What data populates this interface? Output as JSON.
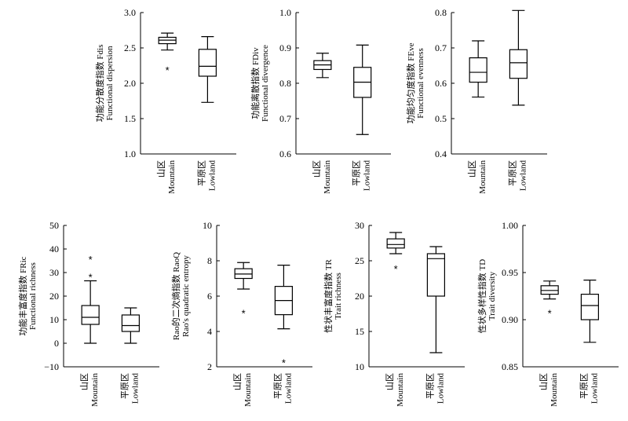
{
  "chart_data": [
    {
      "type": "box",
      "ylabel_cn": "功能分散度指数 Fdis",
      "ylabel_en": "Functional dispersion",
      "ylim": [
        1.0,
        3.0
      ],
      "yticks": [
        "1.0",
        "1.5",
        "2.0",
        "2.5",
        "3.0"
      ],
      "categories": [
        {
          "cn": "山区",
          "en": "Mountain"
        },
        {
          "cn": "平原区",
          "en": "Lowland"
        }
      ],
      "series": [
        {
          "whisker_low": 2.47,
          "q1": 2.56,
          "median": 2.61,
          "q3": 2.65,
          "whisker_high": 2.71,
          "outliers": [
            2.2
          ]
        },
        {
          "whisker_low": 1.73,
          "q1": 2.1,
          "median": 2.24,
          "q3": 2.48,
          "whisker_high": 2.66,
          "outliers": []
        }
      ]
    },
    {
      "type": "box",
      "ylabel_cn": "功能离散指数 FDiv",
      "ylabel_en": "Functional divergence",
      "ylim": [
        0.6,
        1.0
      ],
      "yticks": [
        "0.6",
        "0.7",
        "0.8",
        "0.9",
        "1.0"
      ],
      "categories": [
        {
          "cn": "山区",
          "en": "Mountain"
        },
        {
          "cn": "平原区",
          "en": "Lowland"
        }
      ],
      "series": [
        {
          "whisker_low": 0.816,
          "q1": 0.839,
          "median": 0.852,
          "q3": 0.864,
          "whisker_high": 0.885,
          "outliers": []
        },
        {
          "whisker_low": 0.655,
          "q1": 0.76,
          "median": 0.803,
          "q3": 0.845,
          "whisker_high": 0.908,
          "outliers": []
        }
      ]
    },
    {
      "type": "box",
      "ylabel_cn": "功能均匀度指数 FEve",
      "ylabel_en": "Functional evenness",
      "ylim": [
        0.4,
        0.8
      ],
      "yticks": [
        "0.4",
        "0.5",
        "0.6",
        "0.7",
        "0.8"
      ],
      "categories": [
        {
          "cn": "山区",
          "en": "Mountain"
        },
        {
          "cn": "平原区",
          "en": "Lowland"
        }
      ],
      "series": [
        {
          "whisker_low": 0.561,
          "q1": 0.603,
          "median": 0.631,
          "q3": 0.672,
          "whisker_high": 0.72,
          "outliers": []
        },
        {
          "whisker_low": 0.538,
          "q1": 0.614,
          "median": 0.658,
          "q3": 0.695,
          "whisker_high": 0.806,
          "outliers": []
        }
      ]
    },
    {
      "type": "box",
      "ylabel_cn": "功能丰富度指数 FRic",
      "ylabel_en": "Functional richness",
      "ylim": [
        -10,
        50
      ],
      "yticks": [
        "−10",
        "0",
        "10",
        "20",
        "30",
        "40",
        "50"
      ],
      "categories": [
        {
          "cn": "山区",
          "en": "Mountain"
        },
        {
          "cn": "平原区",
          "en": "Lowland"
        }
      ],
      "series": [
        {
          "whisker_low": 0,
          "q1": 8,
          "median": 11,
          "q3": 16,
          "whisker_high": 26.5,
          "outliers": [
            36,
            28.5
          ]
        },
        {
          "whisker_low": 0,
          "q1": 5,
          "median": 7.5,
          "q3": 12,
          "whisker_high": 15,
          "outliers": []
        }
      ]
    },
    {
      "type": "box",
      "ylabel_cn": "Rao的二次熵指数 RaoQ",
      "ylabel_en": "Rao's quadratic entropy",
      "ylim": [
        2,
        10
      ],
      "yticks": [
        "2",
        "4",
        "6",
        "8",
        "10"
      ],
      "categories": [
        {
          "cn": "山区",
          "en": "Mountain"
        },
        {
          "cn": "平原区",
          "en": "Lowland"
        }
      ],
      "series": [
        {
          "whisker_low": 6.4,
          "q1": 7.0,
          "median": 7.25,
          "q3": 7.55,
          "whisker_high": 7.9,
          "outliers": [
            5.1
          ]
        },
        {
          "whisker_low": 4.15,
          "q1": 4.95,
          "median": 5.75,
          "q3": 6.55,
          "whisker_high": 7.75,
          "outliers": [
            2.3
          ]
        }
      ]
    },
    {
      "type": "box",
      "ylabel_cn": "性状丰富度指数 TR",
      "ylabel_en": "Trait richness",
      "ylim": [
        10,
        30
      ],
      "yticks": [
        "10",
        "15",
        "20",
        "25",
        "30"
      ],
      "categories": [
        {
          "cn": "山区",
          "en": "Mountain"
        },
        {
          "cn": "平原区",
          "en": "Lowland"
        }
      ],
      "series": [
        {
          "whisker_low": 26,
          "q1": 26.8,
          "median": 27.3,
          "q3": 28.1,
          "whisker_high": 29,
          "outliers": [
            24
          ]
        },
        {
          "whisker_low": 12,
          "q1": 20,
          "median": 25.3,
          "q3": 26,
          "whisker_high": 27,
          "outliers": []
        }
      ]
    },
    {
      "type": "box",
      "ylabel_cn": "性状多样性指数 TD",
      "ylabel_en": "Trait diversity",
      "ylim": [
        0.85,
        1.0
      ],
      "yticks": [
        "0.85",
        "0.90",
        "0.95",
        "1.00"
      ],
      "categories": [
        {
          "cn": "山区",
          "en": "Mountain"
        },
        {
          "cn": "平原区",
          "en": "Lowland"
        }
      ],
      "series": [
        {
          "whisker_low": 0.922,
          "q1": 0.927,
          "median": 0.931,
          "q3": 0.936,
          "whisker_high": 0.941,
          "outliers": [
            0.908
          ]
        },
        {
          "whisker_low": 0.876,
          "q1": 0.9,
          "median": 0.915,
          "q3": 0.927,
          "whisker_high": 0.942,
          "outliers": []
        }
      ]
    }
  ]
}
